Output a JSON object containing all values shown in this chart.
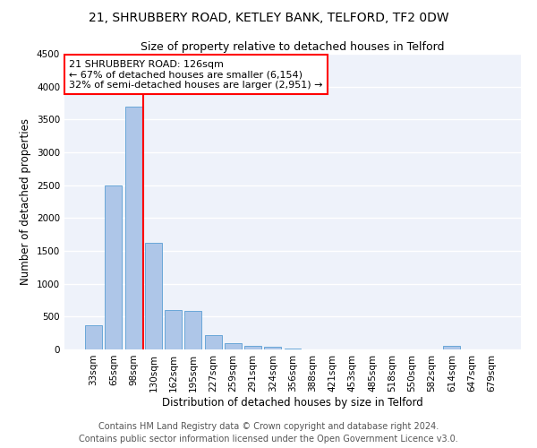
{
  "title": "21, SHRUBBERY ROAD, KETLEY BANK, TELFORD, TF2 0DW",
  "subtitle": "Size of property relative to detached houses in Telford",
  "xlabel": "Distribution of detached houses by size in Telford",
  "ylabel": "Number of detached properties",
  "categories": [
    "33sqm",
    "65sqm",
    "98sqm",
    "130sqm",
    "162sqm",
    "195sqm",
    "227sqm",
    "259sqm",
    "291sqm",
    "324sqm",
    "356sqm",
    "388sqm",
    "421sqm",
    "453sqm",
    "485sqm",
    "518sqm",
    "550sqm",
    "582sqm",
    "614sqm",
    "647sqm",
    "679sqm"
  ],
  "values": [
    375,
    2500,
    3700,
    1625,
    600,
    590,
    215,
    100,
    55,
    45,
    15,
    0,
    0,
    0,
    0,
    0,
    0,
    0,
    50,
    0,
    0
  ],
  "bar_color": "#aec6e8",
  "bar_edge_color": "#5a9fd4",
  "annotation_box_text": [
    "21 SHRUBBERY ROAD: 126sqm",
    "← 67% of detached houses are smaller (6,154)",
    "32% of semi-detached houses are larger (2,951) →"
  ],
  "annotation_box_color": "white",
  "annotation_box_edge_color": "red",
  "vline_color": "red",
  "vline_x_index": 2.5,
  "ylim": [
    0,
    4500
  ],
  "yticks": [
    0,
    500,
    1000,
    1500,
    2000,
    2500,
    3000,
    3500,
    4000,
    4500
  ],
  "footer_line1": "Contains HM Land Registry data © Crown copyright and database right 2024.",
  "footer_line2": "Contains public sector information licensed under the Open Government Licence v3.0.",
  "bg_color": "#eef2fa",
  "grid_color": "white",
  "title_fontsize": 10,
  "subtitle_fontsize": 9,
  "axis_label_fontsize": 8.5,
  "tick_fontsize": 7.5,
  "annotation_fontsize": 8,
  "footer_fontsize": 7
}
